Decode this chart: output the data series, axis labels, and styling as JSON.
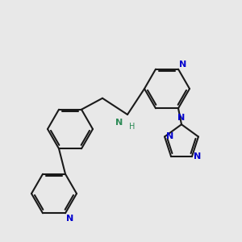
{
  "bg_color": "#e8e8e8",
  "bond_color": "#1a1a1a",
  "N_color": "#0000cd",
  "NH_color": "#2e8b57",
  "lw": 1.5,
  "fig_w": 3.0,
  "fig_h": 3.0,
  "dpi": 100,
  "xlim": [
    0,
    300
  ],
  "ylim": [
    0,
    300
  ],
  "ring_r": 28,
  "triz_r": 22,
  "double_sep": 2.5,
  "double_shorten": 0.13
}
